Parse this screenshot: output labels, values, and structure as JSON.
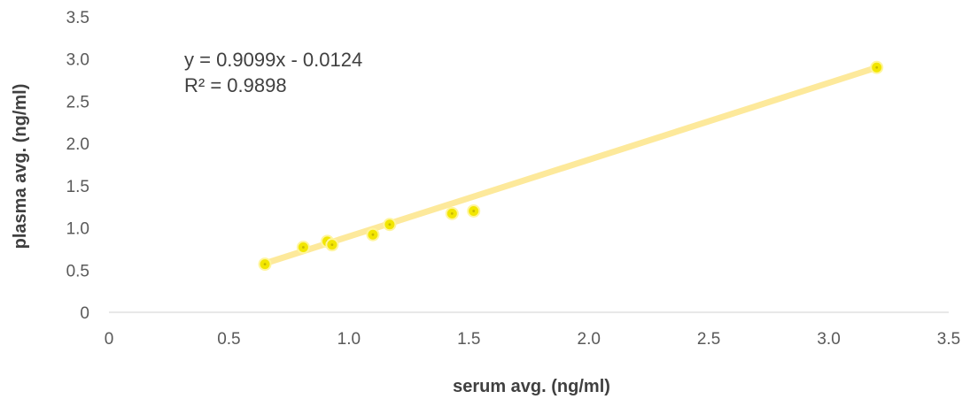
{
  "chart_data": {
    "type": "scatter",
    "title": "",
    "xlabel": "serum avg. (ng/ml)",
    "ylabel": "plasma avg. (ng/ml)",
    "xlim": [
      0,
      3.5
    ],
    "ylim": [
      0,
      3.5
    ],
    "xticks": [
      "0",
      "0.5",
      "1.0",
      "1.5",
      "2.0",
      "2.5",
      "3.0",
      "3.5"
    ],
    "yticks": [
      "0",
      "0.5",
      "1.0",
      "1.5",
      "2.0",
      "2.5",
      "3.0",
      "3.5"
    ],
    "grid": false,
    "legend": "none",
    "series": [
      {
        "color": "#f2e600",
        "x": [
          0.65,
          0.81,
          0.91,
          0.93,
          1.1,
          1.17,
          1.43,
          1.52,
          3.2
        ],
        "y": [
          0.57,
          0.77,
          0.84,
          0.8,
          0.92,
          1.04,
          1.17,
          1.2,
          2.9
        ]
      }
    ],
    "trendline": {
      "type": "linear",
      "slope": 0.9099,
      "intercept": -0.0124,
      "x_range": [
        0.65,
        3.2
      ],
      "color": "#fde68a",
      "equation_label": "y = 0.9099x - 0.0124",
      "r2_label": "R² = 0.9898"
    }
  }
}
